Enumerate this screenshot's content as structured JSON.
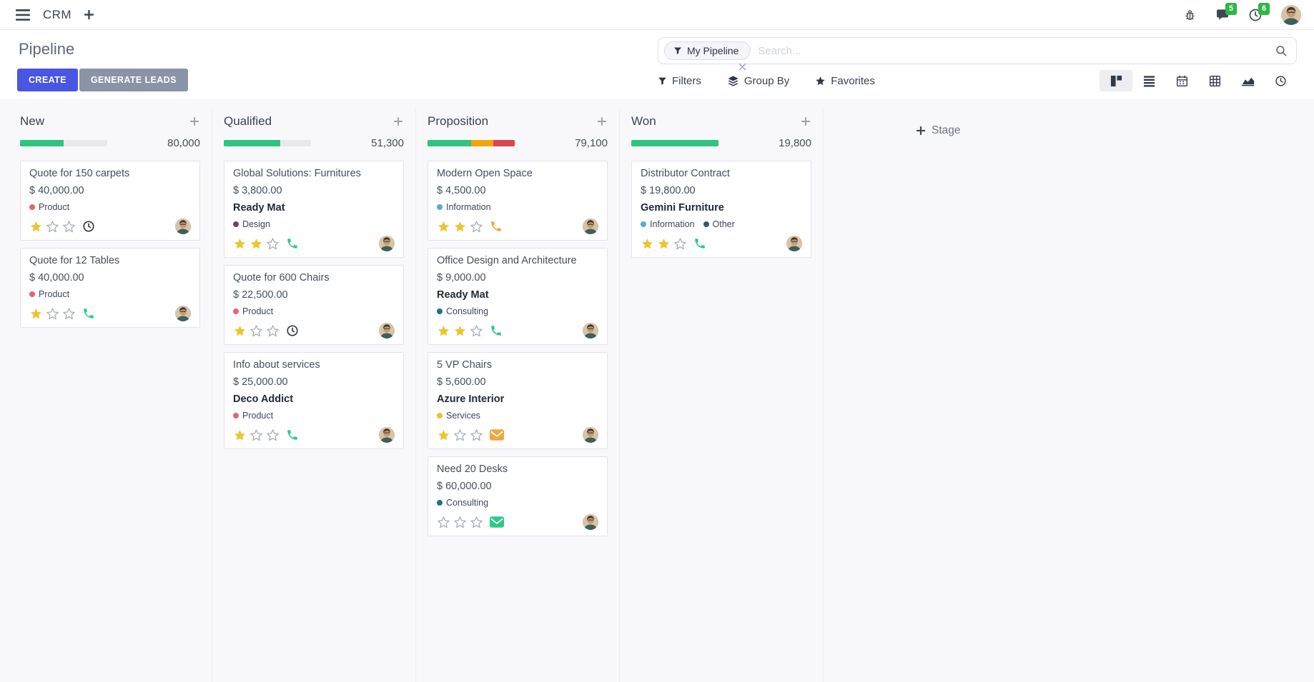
{
  "colors": {
    "primary": "#4956e3",
    "secondary": "#8b93a6",
    "badge_green": "#2cb745"
  },
  "navbar": {
    "app_name": "CRM",
    "message_badge": "5",
    "activity_badge": "6"
  },
  "control_panel": {
    "title": "Pipeline",
    "buttons": {
      "create": "CREATE",
      "generate_leads": "GENERATE LEADS"
    },
    "search": {
      "facet_label": "My Pipeline",
      "placeholder": "Search..."
    },
    "menus": [
      {
        "label": "Filters",
        "icon": "filter-icon"
      },
      {
        "label": "Group By",
        "icon": "layers-icon"
      },
      {
        "label": "Favorites",
        "icon": "star-icon"
      }
    ],
    "view_switcher": [
      "kanban",
      "list",
      "calendar",
      "pivot",
      "graph",
      "activity"
    ],
    "active_view": "kanban"
  },
  "board": {
    "add_stage_label": "Stage",
    "columns": [
      {
        "name": "New",
        "total": "80,000",
        "progress": [
          {
            "color": "#30c381",
            "pct": 50
          }
        ],
        "cards": [
          {
            "title": "Quote for 150 carpets",
            "amount": "$ 40,000.00",
            "tags": [
              {
                "label": "Product",
                "color": "#e7626e"
              }
            ],
            "stars": 1,
            "activity": {
              "icon": "clock",
              "color": "#2a3039"
            }
          },
          {
            "title": "Quote for 12 Tables",
            "amount": "$ 40,000.00",
            "tags": [
              {
                "label": "Product",
                "color": "#e7626e"
              }
            ],
            "stars": 1,
            "activity": {
              "icon": "phone",
              "color": "#2dc98b"
            }
          }
        ]
      },
      {
        "name": "Qualified",
        "total": "51,300",
        "progress": [
          {
            "color": "#30c381",
            "pct": 65
          }
        ],
        "cards": [
          {
            "title": "Global Solutions: Furnitures",
            "amount": "$ 3,800.00",
            "company": "Ready Mat",
            "tags": [
              {
                "label": "Design",
                "color": "#7d3c5f"
              }
            ],
            "stars": 2,
            "activity": {
              "icon": "phone",
              "color": "#2dc98b"
            }
          },
          {
            "title": "Quote for 600 Chairs",
            "amount": "$ 22,500.00",
            "tags": [
              {
                "label": "Product",
                "color": "#e7626e"
              }
            ],
            "stars": 1,
            "activity": {
              "icon": "clock",
              "color": "#2a3039"
            }
          },
          {
            "title": "Info about services",
            "amount": "$ 25,000.00",
            "company": "Deco Addict",
            "tags": [
              {
                "label": "Product",
                "color": "#e7626e"
              }
            ],
            "stars": 1,
            "activity": {
              "icon": "phone",
              "color": "#2dc98b"
            }
          }
        ]
      },
      {
        "name": "Proposition",
        "total": "79,100",
        "progress": [
          {
            "color": "#30c381",
            "pct": 50
          },
          {
            "color": "#f2a60c",
            "pct": 25
          },
          {
            "color": "#da4453",
            "pct": 25
          }
        ],
        "cards": [
          {
            "title": "Modern Open Space",
            "amount": "$ 4,500.00",
            "tags": [
              {
                "label": "Information",
                "color": "#59a8e0"
              }
            ],
            "stars": 2,
            "activity": {
              "icon": "phone",
              "color": "#f0a73f"
            }
          },
          {
            "title": "Office Design and Architecture",
            "amount": "$ 9,000.00",
            "company": "Ready Mat",
            "tags": [
              {
                "label": "Consulting",
                "color": "#20727f"
              }
            ],
            "stars": 2,
            "activity": {
              "icon": "phone",
              "color": "#2dc98b"
            }
          },
          {
            "title": "5 VP Chairs",
            "amount": "$ 5,600.00",
            "company": "Azure Interior",
            "tags": [
              {
                "label": "Services",
                "color": "#e9c237"
              }
            ],
            "stars": 1,
            "activity": {
              "icon": "envelope",
              "color": "#f0a73f"
            }
          },
          {
            "title": "Need 20 Desks",
            "amount": "$ 60,000.00",
            "tags": [
              {
                "label": "Consulting",
                "color": "#20727f"
              }
            ],
            "stars": 0,
            "activity": {
              "icon": "envelope",
              "color": "#2dc98b"
            }
          }
        ]
      },
      {
        "name": "Won",
        "total": "19,800",
        "progress": [
          {
            "color": "#30c381",
            "pct": 100
          }
        ],
        "cards": [
          {
            "title": "Distributor Contract",
            "amount": "$ 19,800.00",
            "company": "Gemini Furniture",
            "tags": [
              {
                "label": "Information",
                "color": "#59a8e0"
              },
              {
                "label": "Other",
                "color": "#2f5a68"
              }
            ],
            "stars": 2,
            "activity": {
              "icon": "phone",
              "color": "#2dc98b"
            }
          }
        ]
      }
    ]
  }
}
